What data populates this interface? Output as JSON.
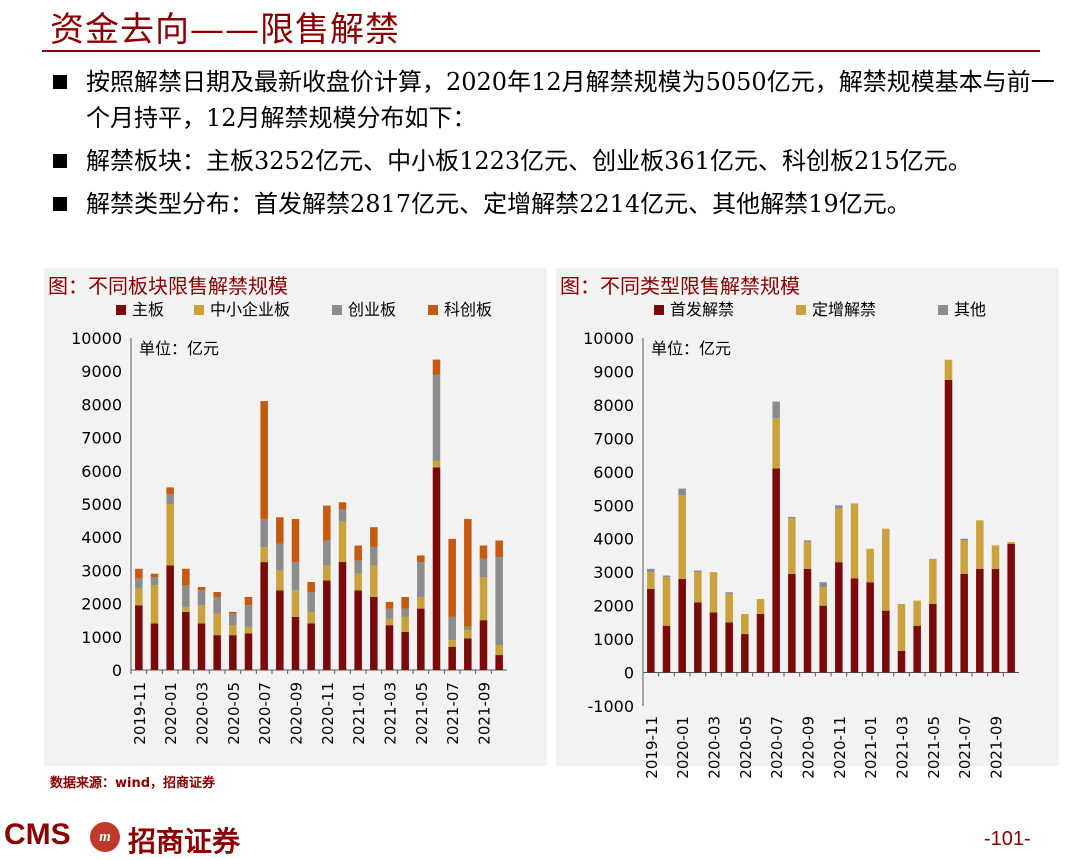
{
  "page": {
    "title": "资金去向——限售解禁",
    "bullets": [
      "按照解禁日期及最新收盘价计算，2020年12月解禁规模为5050亿元，解禁规模基本与前一个月持平，12月解禁规模分布如下：",
      "解禁板块：主板3252亿元、中小板1223亿元、创业板361亿元、科创板215亿元。",
      "解禁类型分布：首发解禁2817亿元、定增解禁2214亿元、其他解禁19亿元。"
    ],
    "source": "数据来源：wind，招商证券",
    "page_number": "-101-",
    "brand": {
      "cms": "CMS",
      "emblem": "m",
      "name": "招商证券"
    }
  },
  "colors": {
    "accent": "#8b0000",
    "series_board": [
      "#7b0a0a",
      "#c9a23c",
      "#8c8c8c",
      "#c55a11"
    ],
    "series_type": [
      "#7b0a0a",
      "#c9a23c",
      "#8c8c8c"
    ]
  },
  "chart_data": [
    {
      "type": "bar",
      "stacked": true,
      "title": "图：不同板块限售解禁规模",
      "unit_note": "单位：亿元",
      "ylim": [
        0,
        10000
      ],
      "yticks": [
        0,
        1000,
        2000,
        3000,
        4000,
        5000,
        6000,
        7000,
        8000,
        9000,
        10000
      ],
      "legend": "top",
      "categories": [
        "2019-11",
        "2019-12",
        "2020-01",
        "2020-02",
        "2020-03",
        "2020-04",
        "2020-05",
        "2020-06",
        "2020-07",
        "2020-08",
        "2020-09",
        "2020-10",
        "2020-11",
        "2020-12",
        "2021-01",
        "2021-02",
        "2021-03",
        "2021-04",
        "2021-05",
        "2021-06",
        "2021-07",
        "2021-08",
        "2021-09",
        "2021-10"
      ],
      "tick_labels": [
        "2019-11",
        "2020-01",
        "2020-03",
        "2020-05",
        "2020-07",
        "2020-09",
        "2020-11",
        "2021-01",
        "2021-03",
        "2021-05",
        "2021-07",
        "2021-09"
      ],
      "series": [
        {
          "name": "主板",
          "values": [
            1950,
            1400,
            3150,
            1750,
            1400,
            1050,
            1050,
            1100,
            3250,
            2400,
            1600,
            1400,
            2700,
            3252,
            2400,
            2200,
            1350,
            1150,
            1850,
            6100,
            700,
            950,
            1500,
            450
          ]
        },
        {
          "name": "中小企业板",
          "values": [
            500,
            1150,
            1850,
            150,
            550,
            650,
            300,
            200,
            450,
            600,
            800,
            350,
            450,
            1223,
            500,
            950,
            200,
            450,
            350,
            200,
            200,
            250,
            1300,
            300
          ]
        },
        {
          "name": "创业板",
          "values": [
            300,
            250,
            300,
            650,
            450,
            500,
            350,
            650,
            850,
            800,
            850,
            600,
            750,
            361,
            400,
            550,
            300,
            250,
            1050,
            2600,
            700,
            100,
            550,
            2650
          ]
        },
        {
          "name": "科创板",
          "values": [
            300,
            100,
            200,
            500,
            100,
            150,
            50,
            250,
            3550,
            800,
            1300,
            300,
            1050,
            215,
            450,
            600,
            200,
            350,
            200,
            450,
            2350,
            3250,
            400,
            500
          ]
        }
      ]
    },
    {
      "type": "bar",
      "stacked": true,
      "title": "图：不同类型限售解禁规模",
      "unit_note": "单位：亿元",
      "ylim": [
        -1000,
        10000
      ],
      "yticks": [
        -1000,
        0,
        1000,
        2000,
        3000,
        4000,
        5000,
        6000,
        7000,
        8000,
        9000,
        10000
      ],
      "legend": "top",
      "categories": [
        "2019-11",
        "2019-12",
        "2020-01",
        "2020-02",
        "2020-03",
        "2020-04",
        "2020-05",
        "2020-06",
        "2020-07",
        "2020-08",
        "2020-09",
        "2020-10",
        "2020-11",
        "2020-12",
        "2021-01",
        "2021-02",
        "2021-03",
        "2021-04",
        "2021-05",
        "2021-06",
        "2021-07",
        "2021-08",
        "2021-09",
        "2021-10"
      ],
      "tick_labels": [
        "2019-11",
        "2020-01",
        "2020-03",
        "2020-05",
        "2020-07",
        "2020-09",
        "2020-11",
        "2021-01",
        "2021-03",
        "2021-05",
        "2021-07",
        "2021-09"
      ],
      "series": [
        {
          "name": "首发解禁",
          "values": [
            2500,
            1400,
            2800,
            2100,
            1800,
            1500,
            1150,
            1750,
            6100,
            2950,
            3100,
            2000,
            3300,
            2817,
            2700,
            1850,
            650,
            1400,
            2050,
            8750,
            2950,
            3100,
            3100,
            3850
          ]
        },
        {
          "name": "定增解禁",
          "values": [
            500,
            1450,
            2500,
            900,
            1200,
            850,
            600,
            450,
            1500,
            1650,
            800,
            550,
            1600,
            2214,
            1000,
            2450,
            1400,
            750,
            1350,
            600,
            1000,
            1450,
            700,
            50
          ]
        },
        {
          "name": "其他",
          "values": [
            100,
            50,
            200,
            50,
            0,
            50,
            0,
            0,
            500,
            50,
            50,
            150,
            100,
            19,
            0,
            0,
            0,
            0,
            0,
            0,
            50,
            0,
            0,
            0
          ]
        }
      ]
    }
  ]
}
